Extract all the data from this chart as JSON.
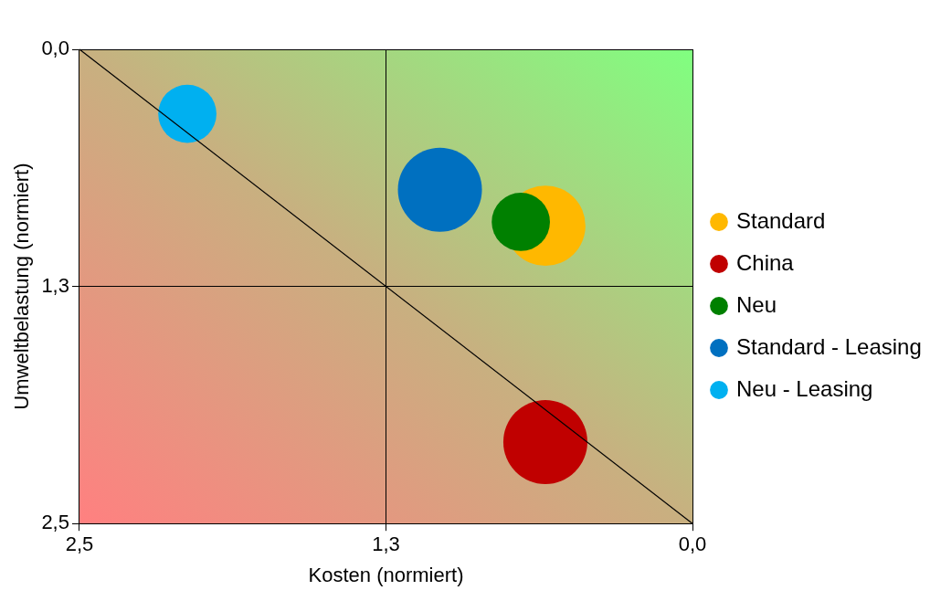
{
  "chart_data": {
    "type": "bubble",
    "xlabel": "Kosten (normiert)",
    "ylabel": "Umweltbelastung (normiert)",
    "xlim": [
      2.5,
      0
    ],
    "ylim": [
      2.5,
      0
    ],
    "xticks": [
      {
        "value": 2.5,
        "label": "2,5"
      },
      {
        "value": 1.25,
        "label": "1,3"
      },
      {
        "value": 0,
        "label": "0,0"
      }
    ],
    "yticks": [
      {
        "value": 2.5,
        "label": "2,5"
      },
      {
        "value": 1.25,
        "label": "1,3"
      },
      {
        "value": 0,
        "label": "0,0"
      }
    ],
    "grid": true,
    "legend": "right",
    "series": [
      {
        "name": "Standard",
        "color": "#ffb800",
        "x": [
          0.6
        ],
        "values": [
          0.93
        ],
        "sizes": [
          0.91
        ]
      },
      {
        "name": "China",
        "color": "#c00000",
        "x": [
          0.6
        ],
        "values": [
          2.07
        ],
        "sizes": [
          1
        ]
      },
      {
        "name": "Neu",
        "color": "#008000",
        "x": [
          0.7
        ],
        "values": [
          0.91
        ],
        "sizes": [
          0.48
        ]
      },
      {
        "name": "Standard - Leasing",
        "color": "#0070c0",
        "x": [
          1.03
        ],
        "values": [
          0.74
        ],
        "sizes": [
          1
        ]
      },
      {
        "name": "Neu - Leasing",
        "color": "#00b0f0",
        "x": [
          2.06
        ],
        "values": [
          0.34
        ],
        "sizes": [
          0.48
        ]
      },
      {
        "type": "line",
        "color": "#000000",
        "x": [
          2.5,
          0
        ],
        "values": [
          0,
          2.5
        ],
        "marker": "none",
        "line_style": "solid"
      }
    ]
  }
}
